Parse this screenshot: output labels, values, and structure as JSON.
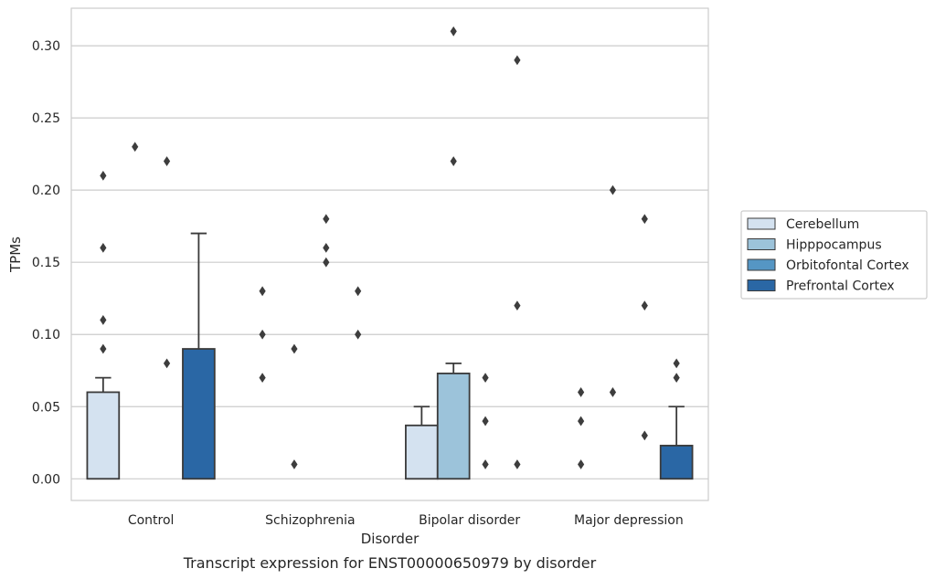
{
  "chart_data": {
    "type": "bar",
    "xlabel": "Disorder",
    "ylabel": "TPMs",
    "caption": "Transcript expression for ENST00000650979 by disorder",
    "ylim": [
      -0.015,
      0.326
    ],
    "yticks": [
      "0.00",
      "0.05",
      "0.10",
      "0.15",
      "0.20",
      "0.25",
      "0.30"
    ],
    "grid": true,
    "legend_position": "right",
    "categories": [
      "Control",
      "Schizophrenia",
      "Bipolar disorder",
      "Major depression"
    ],
    "series": [
      {
        "name": "Cerebellum",
        "color": "#d4e2f0",
        "values": [
          0.06,
          0.0,
          0.037,
          0.0
        ],
        "whisker_top": [
          0.07,
          null,
          0.05,
          null
        ],
        "outliers": [
          [
            0.09,
            0.11,
            0.16,
            0.21
          ],
          [
            0.07,
            0.1,
            0.13
          ],
          [],
          [
            0.01,
            0.04,
            0.06
          ]
        ]
      },
      {
        "name": "Hipppocampus",
        "color": "#9cc3da",
        "values": [
          0.0,
          0.0,
          0.073,
          0.0
        ],
        "whisker_top": [
          null,
          null,
          0.08,
          null
        ],
        "outliers": [
          [
            0.23
          ],
          [
            0.01,
            0.09
          ],
          [
            0.22,
            0.31
          ],
          [
            0.06,
            0.2
          ]
        ]
      },
      {
        "name": "Orbitofontal Cortex",
        "color": "#5596c4",
        "values": [
          0.0,
          0.0,
          0.0,
          0.0
        ],
        "whisker_top": [
          null,
          null,
          null,
          null
        ],
        "outliers": [
          [
            0.08,
            0.22
          ],
          [
            0.15,
            0.16,
            0.18
          ],
          [
            0.01,
            0.04,
            0.07
          ],
          [
            0.03,
            0.12,
            0.18
          ]
        ]
      },
      {
        "name": "Prefrontal Cortex",
        "color": "#2a67a5",
        "values": [
          0.09,
          0.0,
          0.0,
          0.023
        ],
        "whisker_top": [
          0.17,
          null,
          null,
          0.05
        ],
        "outliers": [
          [],
          [
            0.1,
            0.13
          ],
          [
            0.01,
            0.12,
            0.29
          ],
          [
            0.07,
            0.08
          ]
        ]
      }
    ]
  }
}
